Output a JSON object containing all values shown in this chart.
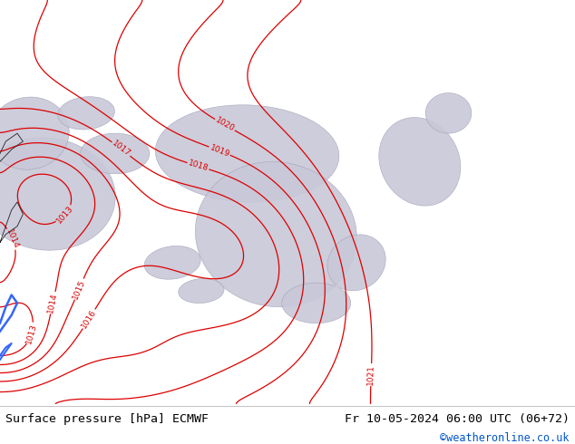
{
  "title_left": "Surface pressure [hPa] ECMWF",
  "title_right": "Fr 10-05-2024 06:00 UTC (06+72)",
  "credit": "©weatheronline.co.uk",
  "bg_color": "#c8f0a0",
  "highland_color": "#c8c8d8",
  "highland_edge": "#a0a0b8",
  "contour_color": "#dd0000",
  "footer_bg": "#ffffff",
  "footer_text_color": "#000000",
  "credit_color": "#0055cc",
  "blue_water": "#3366ff",
  "black_coast": "#222222",
  "figsize": [
    6.34,
    4.9
  ],
  "dpi": 100
}
